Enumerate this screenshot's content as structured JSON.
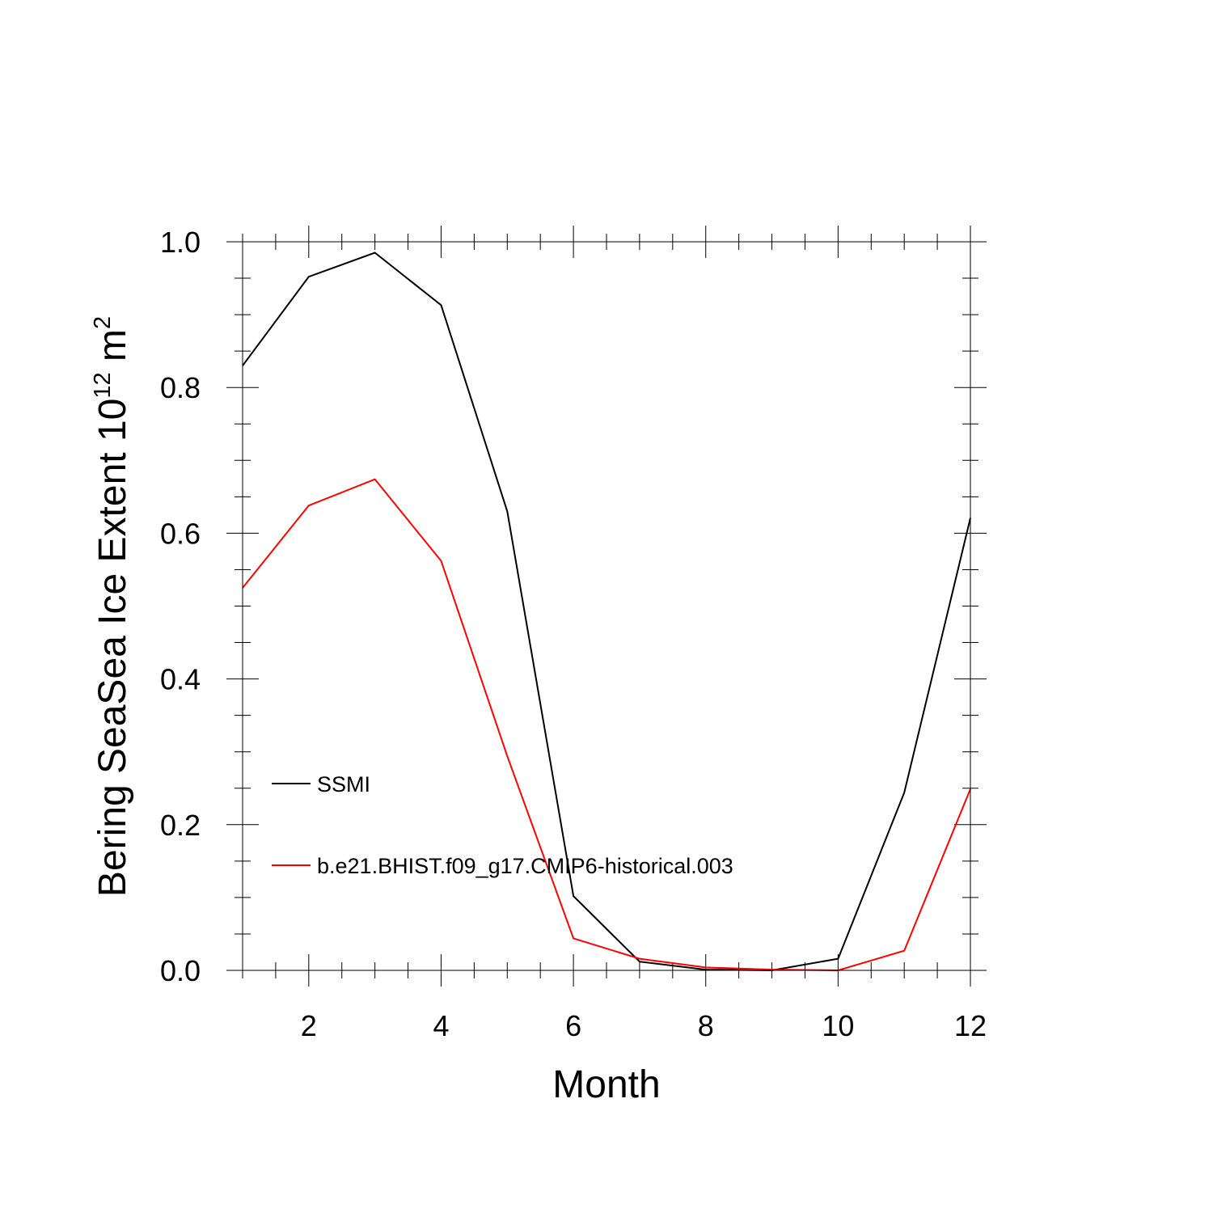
{
  "chart_data": {
    "type": "line",
    "title": "",
    "xlabel": "Month",
    "ylabel": {
      "main": "Bering SeaSea Ice Extent 10",
      "exponent": "12",
      "unit": " m",
      "unit_exponent": "2"
    },
    "xlim": [
      1,
      12
    ],
    "ylim": [
      0.0,
      1.0
    ],
    "x_ticks": [
      2,
      4,
      6,
      8,
      10,
      12
    ],
    "x_tick_labels": [
      "2",
      "4",
      "6",
      "8",
      "10",
      "12"
    ],
    "y_ticks": [
      0.0,
      0.2,
      0.4,
      0.6,
      0.8,
      1.0
    ],
    "y_tick_labels": [
      "0.0",
      "0.2",
      "0.4",
      "0.6",
      "0.8",
      "1.0"
    ],
    "grid": false,
    "legend_position": "lower-left inside plot",
    "x": [
      1,
      2,
      3,
      4,
      5,
      6,
      7,
      8,
      9,
      10,
      11,
      12
    ],
    "series": [
      {
        "name": "SSMI",
        "color": "#000000",
        "values": [
          0.83,
          0.952,
          0.985,
          0.913,
          0.63,
          0.102,
          0.012,
          0.001,
          0.0,
          0.016,
          0.244,
          0.621
        ]
      },
      {
        "name": "b.e21.BHIST.f09_g17.CMIP6-historical.003",
        "color": "#ff0000",
        "values": [
          0.525,
          0.638,
          0.674,
          0.562,
          0.294,
          0.044,
          0.016,
          0.004,
          0.001,
          0.0,
          0.027,
          0.249
        ]
      }
    ]
  }
}
